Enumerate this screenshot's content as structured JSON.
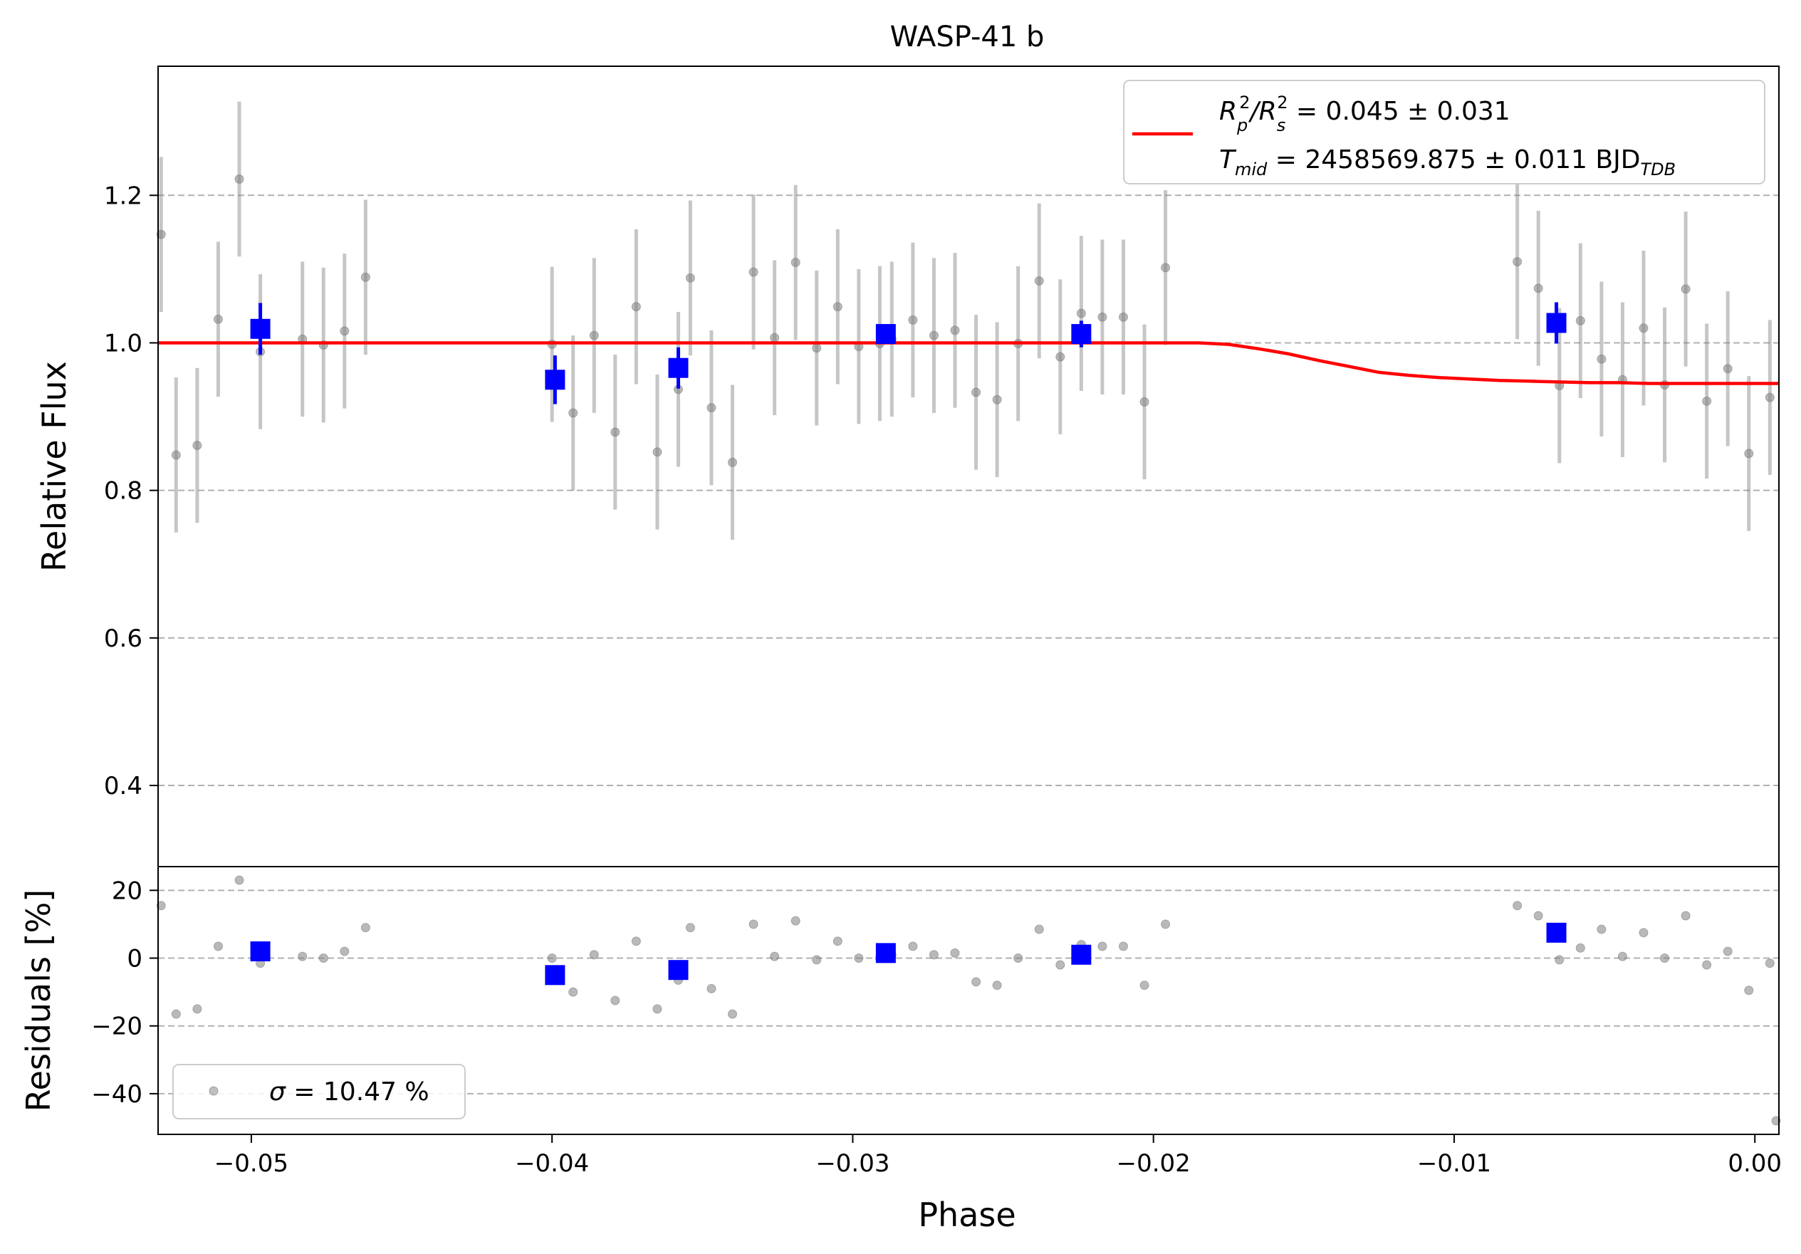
{
  "chart_data": [
    {
      "type": "scatter",
      "panel": "top",
      "title": "WASP-41 b",
      "xlabel": "",
      "ylabel": "Relative Flux",
      "xlim": [
        -0.0531,
        0.0008
      ],
      "ylim": [
        0.29,
        1.375
      ],
      "yticks": [
        0.4,
        0.6,
        0.8,
        1.0,
        1.2
      ],
      "ytick_labels": [
        "0.4",
        "0.6",
        "0.8",
        "1.0",
        "1.2"
      ],
      "grid": "horizontal dashed",
      "legend": {
        "placement": "top-right",
        "line1": {
          "prefix": "R",
          "sub1": "p",
          "sup1": "2",
          "mid": "/R",
          "sub2": "s",
          "sup2": "2",
          "suffix": " = 0.045 ± 0.031"
        },
        "line2": {
          "prefix": "T",
          "sub1": "mid",
          "mid": " = 2458569.875 ± 0.011 BJD",
          "sub2": "TDB"
        }
      },
      "colors": {
        "data": "#808080",
        "binned": "#0000ff",
        "model": "#ff0000",
        "grid": "#b0b0b0"
      },
      "series": [
        {
          "name": "data",
          "x": [
            -0.053,
            -0.0525,
            -0.0518,
            -0.0511,
            -0.0504,
            -0.0497,
            -0.0483,
            -0.0476,
            -0.0469,
            -0.0462,
            -0.04,
            -0.0393,
            -0.0386,
            -0.0379,
            -0.0372,
            -0.0365,
            -0.0358,
            -0.0354,
            -0.0347,
            -0.034,
            -0.0333,
            -0.0326,
            -0.0319,
            -0.0312,
            -0.0305,
            -0.0298,
            -0.0291,
            -0.0287,
            -0.028,
            -0.0273,
            -0.0266,
            -0.0259,
            -0.0252,
            -0.0245,
            -0.0238,
            -0.0231,
            -0.0224,
            -0.0217,
            -0.021,
            -0.0203,
            -0.0196,
            -0.0079,
            -0.0072,
            -0.0065,
            -0.0058,
            -0.0051,
            -0.0044,
            -0.0037,
            -0.003,
            -0.0023,
            -0.0016,
            -0.0009,
            -0.0002,
            0.0005
          ],
          "y": [
            1.147,
            0.848,
            0.861,
            1.032,
            1.222,
            0.988,
            1.005,
            0.997,
            1.016,
            1.089,
            0.998,
            0.905,
            1.01,
            0.879,
            1.049,
            0.852,
            0.937,
            1.088,
            0.912,
            0.838,
            1.096,
            1.007,
            1.109,
            0.993,
            1.049,
            0.995,
            0.999,
            1.005,
            1.031,
            1.01,
            1.017,
            0.933,
            0.923,
            0.999,
            1.084,
            0.981,
            1.04,
            1.035,
            1.035,
            0.92,
            1.102,
            1.11,
            1.074,
            0.942,
            1.03,
            0.978,
            0.95,
            1.02,
            0.943,
            1.073,
            0.921,
            0.965,
            0.85,
            0.926
          ],
          "yerr": [
            0.105,
            0.105,
            0.105,
            0.105,
            0.105,
            0.105,
            0.105,
            0.105,
            0.105,
            0.105,
            0.105,
            0.105,
            0.105,
            0.105,
            0.105,
            0.105,
            0.105,
            0.105,
            0.105,
            0.105,
            0.105,
            0.105,
            0.105,
            0.105,
            0.105,
            0.105,
            0.105,
            0.105,
            0.105,
            0.105,
            0.105,
            0.105,
            0.105,
            0.105,
            0.105,
            0.105,
            0.105,
            0.105,
            0.105,
            0.105,
            0.105,
            0.105,
            0.105,
            0.105,
            0.105,
            0.105,
            0.105,
            0.105,
            0.105,
            0.105,
            0.105,
            0.105,
            0.105,
            0.105
          ]
        },
        {
          "name": "binned",
          "x": [
            -0.0497,
            -0.0399,
            -0.0358,
            -0.0289,
            -0.0224,
            -0.0066
          ],
          "y": [
            1.019,
            0.95,
            0.966,
            1.012,
            1.012,
            1.027
          ],
          "yerr": [
            0.035,
            0.033,
            0.028,
            0.012,
            0.018,
            0.028
          ]
        },
        {
          "name": "model",
          "x": [
            -0.0531,
            -0.0185,
            -0.0175,
            -0.0165,
            -0.0155,
            -0.0145,
            -0.0135,
            -0.0125,
            -0.0115,
            -0.0105,
            -0.0095,
            -0.0085,
            -0.0075,
            -0.0065,
            -0.0055,
            -0.0045,
            -0.0035,
            -0.0025,
            -0.0015,
            -0.0005,
            0.0008
          ],
          "y": [
            1.0,
            1.0,
            0.998,
            0.992,
            0.985,
            0.976,
            0.968,
            0.96,
            0.956,
            0.953,
            0.951,
            0.949,
            0.948,
            0.947,
            0.946,
            0.946,
            0.945,
            0.945,
            0.945,
            0.945,
            0.945
          ]
        }
      ]
    },
    {
      "type": "scatter",
      "panel": "bottom",
      "xlabel": "Phase",
      "ylabel": "Residuals [%]",
      "xlim": [
        -0.0531,
        0.0008
      ],
      "ylim": [
        -52,
        27
      ],
      "xticks": [
        -0.05,
        -0.04,
        -0.03,
        -0.02,
        -0.01,
        0.0
      ],
      "xtick_labels": [
        "−0.05",
        "−0.04",
        "−0.03",
        "−0.02",
        "−0.01",
        "0.00"
      ],
      "yticks": [
        -40,
        -20,
        0,
        20
      ],
      "ytick_labels": [
        "−40",
        "−20",
        "0",
        "20"
      ],
      "grid": "horizontal dashed",
      "legend": {
        "placement": "bottom-left",
        "symbol": "σ",
        "text": " = 10.47 %"
      },
      "series": [
        {
          "name": "data",
          "x": [
            -0.053,
            -0.0525,
            -0.0518,
            -0.0511,
            -0.0504,
            -0.0497,
            -0.0483,
            -0.0476,
            -0.0469,
            -0.0462,
            -0.04,
            -0.0393,
            -0.0386,
            -0.0379,
            -0.0372,
            -0.0365,
            -0.0358,
            -0.0354,
            -0.0347,
            -0.034,
            -0.0333,
            -0.0326,
            -0.0319,
            -0.0312,
            -0.0305,
            -0.0298,
            -0.0291,
            -0.0287,
            -0.028,
            -0.0273,
            -0.0266,
            -0.0259,
            -0.0252,
            -0.0245,
            -0.0238,
            -0.0231,
            -0.0224,
            -0.0217,
            -0.021,
            -0.0203,
            -0.0196,
            -0.0079,
            -0.0072,
            -0.0065,
            -0.0058,
            -0.0051,
            -0.0044,
            -0.0037,
            -0.003,
            -0.0023,
            -0.0016,
            -0.0009,
            -0.0002,
            0.0005,
            0.0008
          ],
          "y": [
            15.5,
            -16.5,
            -15,
            3.5,
            23,
            -1.5,
            0.5,
            0,
            2,
            9,
            0,
            -10,
            1,
            -12.5,
            5,
            -15,
            -6.5,
            9,
            -9,
            -16.5,
            10,
            0.5,
            11,
            -0.5,
            5,
            0,
            0,
            1,
            3.5,
            1,
            1.5,
            -7,
            -8,
            0,
            8.5,
            -2,
            4,
            3.5,
            3.5,
            -8,
            10,
            15.5,
            12.5,
            -0.5,
            3,
            8.5,
            0.5,
            7.5,
            0,
            12.5,
            -2,
            2,
            -9.5,
            -1.5,
            -48
          ]
        },
        {
          "name": "binned",
          "x": [
            -0.0497,
            -0.0399,
            -0.0358,
            -0.0289,
            -0.0224,
            -0.0066
          ],
          "y": [
            2,
            -5,
            -3.5,
            1.5,
            1,
            7.5
          ]
        }
      ]
    }
  ]
}
